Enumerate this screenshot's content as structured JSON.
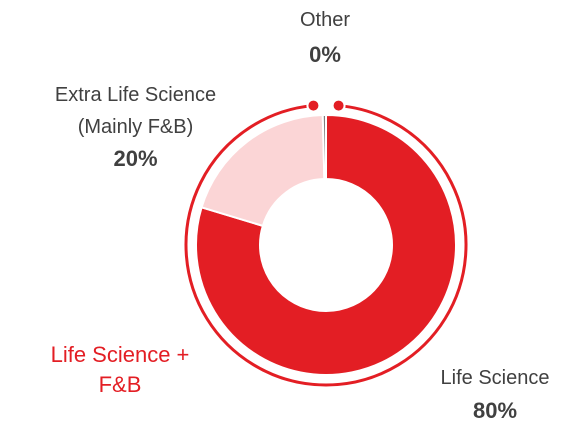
{
  "chart_data": {
    "type": "donut",
    "categories": [
      "Life Science",
      "Extra Life Science (Mainly F&B)",
      "Other"
    ],
    "values": [
      80,
      20,
      0.4
    ],
    "value_labels": [
      "80%",
      "20%",
      "0%"
    ],
    "colors": [
      "#e31e24",
      "#fbd5d6",
      "#7f7f7f"
    ],
    "annotation": "Life Science + F&B"
  }
}
